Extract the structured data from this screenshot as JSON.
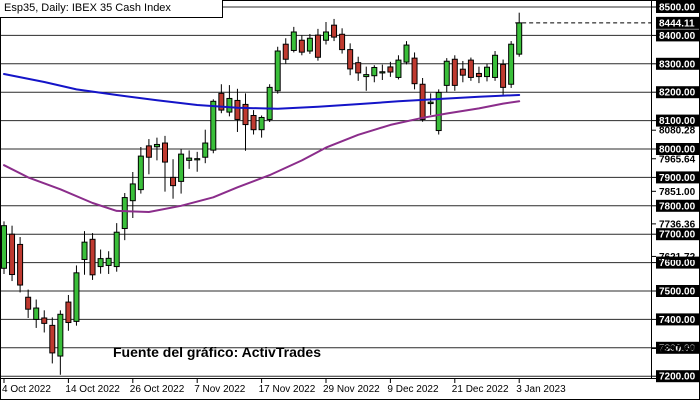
{
  "window": {
    "title": "Esp35, Daily: IBEX 35 Cash Index"
  },
  "source_caption": "Fuente del gráfico: ActivTrades",
  "colors": {
    "background": "#ffffff",
    "up_candle": "#3abf3a",
    "down_candle": "#bf3a30",
    "candle_outline": "#000000",
    "wick": "#000000",
    "grid": "#2b2b2b",
    "frame": "#000000",
    "ma_blue": "#1414c8",
    "ma_purple": "#8b2d8b",
    "axis_label_bg": "#000000",
    "axis_label_fg": "#ffffff",
    "bid_line": "#000000"
  },
  "y_axis": {
    "gridline_labels": [
      "8500.00",
      "8400.00",
      "8300.00",
      "8200.00",
      "8100.00",
      "8000.00",
      "7900.00",
      "7800.00",
      "7700.00",
      "7600.00",
      "7500.00",
      "7400.00",
      "7300.00",
      "7200.00"
    ],
    "extra_labels": [
      "8080.28",
      "7965.64",
      "7851.00",
      "7736.36",
      "7621.72",
      "7297.60"
    ],
    "current_price_label": "8444.11"
  },
  "x_axis": {
    "ticks": [
      {
        "label": "4 Oct 2022",
        "index": 0
      },
      {
        "label": "14 Oct 2022",
        "index": 8
      },
      {
        "label": "26 Oct 2022",
        "index": 16
      },
      {
        "label": "7 Nov 2022",
        "index": 24
      },
      {
        "label": "17 Nov 2022",
        "index": 32
      },
      {
        "label": "29 Nov 2022",
        "index": 40
      },
      {
        "label": "9 Dec 2022",
        "index": 48
      },
      {
        "label": "21 Dec 2022",
        "index": 56
      },
      {
        "label": "3 Jan 2023",
        "index": 64
      }
    ]
  },
  "chart_data": {
    "type": "candlestick",
    "title": "Esp35, Daily: IBEX 35 Cash Index",
    "instrument": "Esp35",
    "timeframe": "Daily",
    "current_price": 8444.11,
    "ylim": [
      7194,
      8525
    ],
    "gridline_step": 100,
    "grid": "horizontal-only",
    "x_range_labels": [
      "4 Oct 2022",
      "3 Jan 2023"
    ],
    "candles_ohlc": [
      [
        7580,
        7745,
        7560,
        7730
      ],
      [
        7700,
        7730,
        7535,
        7558
      ],
      [
        7664,
        7690,
        7495,
        7521
      ],
      [
        7478,
        7505,
        7405,
        7436
      ],
      [
        7400,
        7470,
        7370,
        7440
      ],
      [
        7405,
        7432,
        7354,
        7386
      ],
      [
        7379,
        7407,
        7245,
        7282
      ],
      [
        7271,
        7432,
        7205,
        7418
      ],
      [
        7461,
        7486,
        7360,
        7389
      ],
      [
        7393,
        7590,
        7378,
        7564
      ],
      [
        7611,
        7711,
        7557,
        7672
      ],
      [
        7682,
        7704,
        7539,
        7557
      ],
      [
        7586,
        7646,
        7561,
        7614
      ],
      [
        7590,
        7640,
        7560,
        7615
      ],
      [
        7586,
        7739,
        7568,
        7707
      ],
      [
        7720,
        7845,
        7679,
        7829
      ],
      [
        7818,
        7919,
        7757,
        7877
      ],
      [
        7857,
        8007,
        7843,
        7975
      ],
      [
        8011,
        8035,
        7911,
        7971
      ],
      [
        8008,
        8040,
        7960,
        8016
      ],
      [
        8021,
        8046,
        7850,
        7954
      ],
      [
        7900,
        7964,
        7825,
        7871
      ],
      [
        7886,
        8000,
        7843,
        7982
      ],
      [
        7960,
        7995,
        7930,
        7968
      ],
      [
        7962,
        7990,
        7920,
        7966
      ],
      [
        7971,
        8068,
        7950,
        8021
      ],
      [
        7996,
        8175,
        7985,
        8168
      ],
      [
        8196,
        8228,
        8126,
        8137
      ],
      [
        8130,
        8225,
        8115,
        8178
      ],
      [
        8171,
        8212,
        8060,
        8104
      ],
      [
        8157,
        8196,
        7994,
        8086
      ],
      [
        8118,
        8137,
        8051,
        8068
      ],
      [
        8068,
        8118,
        8040,
        8111
      ],
      [
        8104,
        8228,
        8095,
        8217
      ],
      [
        8205,
        8360,
        8195,
        8345
      ],
      [
        8369,
        8390,
        8300,
        8316
      ],
      [
        8347,
        8430,
        8340,
        8412
      ],
      [
        8383,
        8400,
        8330,
        8341
      ],
      [
        8345,
        8405,
        8335,
        8390
      ],
      [
        8401,
        8423,
        8311,
        8323
      ],
      [
        8383,
        8447,
        8368,
        8412
      ],
      [
        8436,
        8458,
        8380,
        8394
      ],
      [
        8404,
        8425,
        8336,
        8350
      ],
      [
        8350,
        8372,
        8260,
        8282
      ],
      [
        8304,
        8325,
        8240,
        8268
      ],
      [
        8255,
        8290,
        8205,
        8262
      ],
      [
        8258,
        8295,
        8235,
        8287
      ],
      [
        8268,
        8297,
        8243,
        8272
      ],
      [
        8289,
        8307,
        8254,
        8271
      ],
      [
        8252,
        8330,
        8245,
        8313
      ],
      [
        8306,
        8380,
        8298,
        8366
      ],
      [
        8320,
        8340,
        8210,
        8230
      ],
      [
        8228,
        8250,
        8096,
        8104
      ],
      [
        8160,
        8196,
        8120,
        8165
      ],
      [
        8065,
        8210,
        8051,
        8199
      ],
      [
        8224,
        8320,
        8200,
        8309
      ],
      [
        8316,
        8330,
        8205,
        8224
      ],
      [
        8281,
        8310,
        8235,
        8260
      ],
      [
        8313,
        8322,
        8240,
        8252
      ],
      [
        8266,
        8290,
        8232,
        8255
      ],
      [
        8255,
        8300,
        8238,
        8288
      ],
      [
        8252,
        8345,
        8240,
        8330
      ],
      [
        8298,
        8315,
        8189,
        8217
      ],
      [
        8228,
        8380,
        8215,
        8369
      ],
      [
        8334,
        8480,
        8325,
        8444.11
      ]
    ],
    "moving_averages": [
      {
        "name": "blue_line",
        "color_key": "ma_blue",
        "points": [
          [
            0,
            8264
          ],
          [
            5,
            8236
          ],
          [
            9,
            8210
          ],
          [
            14,
            8190
          ],
          [
            19,
            8172
          ],
          [
            24,
            8155
          ],
          [
            29,
            8145
          ],
          [
            34,
            8142
          ],
          [
            39,
            8149
          ],
          [
            44,
            8158
          ],
          [
            49,
            8168
          ],
          [
            54,
            8176
          ],
          [
            59,
            8184
          ],
          [
            64,
            8190
          ]
        ]
      },
      {
        "name": "purple_line",
        "color_key": "ma_purple",
        "points": [
          [
            0,
            7943
          ],
          [
            3,
            7900
          ],
          [
            7,
            7858
          ],
          [
            11,
            7810
          ],
          [
            14,
            7782
          ],
          [
            18,
            7778
          ],
          [
            22,
            7800
          ],
          [
            26,
            7830
          ],
          [
            29,
            7865
          ],
          [
            33,
            7908
          ],
          [
            37,
            7960
          ],
          [
            40,
            8005
          ],
          [
            44,
            8050
          ],
          [
            48,
            8085
          ],
          [
            52,
            8110
          ],
          [
            55,
            8125
          ],
          [
            59,
            8143
          ],
          [
            62,
            8160
          ],
          [
            64,
            8168
          ]
        ]
      }
    ]
  }
}
